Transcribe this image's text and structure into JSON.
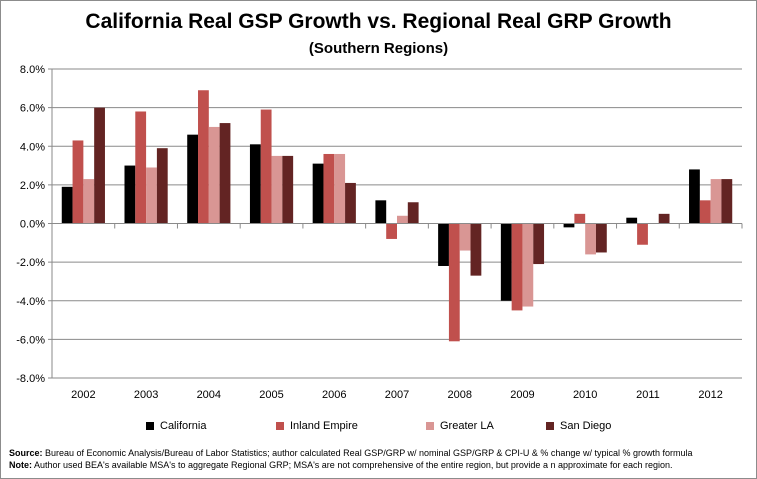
{
  "chart_data": {
    "type": "bar",
    "title": "California Real GSP Growth vs. Regional Real GRP Growth",
    "subtitle": "(Southern Regions)",
    "categories": [
      "2002",
      "2003",
      "2004",
      "2005",
      "2006",
      "2007",
      "2008",
      "2009",
      "2010",
      "2011",
      "2012"
    ],
    "series": [
      {
        "name": "California",
        "color": "#000000",
        "values": [
          1.9,
          3.0,
          4.6,
          4.1,
          3.1,
          1.2,
          -2.2,
          -4.0,
          -0.2,
          0.3,
          2.8
        ]
      },
      {
        "name": "Inland Empire",
        "color": "#c0504d",
        "values": [
          4.3,
          5.8,
          6.9,
          5.9,
          3.6,
          -0.8,
          -6.1,
          -4.5,
          0.5,
          -1.1,
          1.2
        ]
      },
      {
        "name": "Greater LA",
        "color": "#d99694",
        "values": [
          2.3,
          2.9,
          5.0,
          3.5,
          3.6,
          0.4,
          -1.4,
          -4.3,
          -1.6,
          0.0,
          2.3
        ]
      },
      {
        "name": "San Diego",
        "color": "#632423",
        "values": [
          6.0,
          3.9,
          5.2,
          3.5,
          2.1,
          1.1,
          -2.7,
          -2.1,
          -1.5,
          0.5,
          2.3
        ]
      }
    ],
    "yticks": [
      "8.0%",
      "6.0%",
      "4.0%",
      "2.0%",
      "0.0%",
      "-2.0%",
      "-4.0%",
      "-6.0%",
      "-8.0%"
    ],
    "ylim": [
      -8,
      8
    ],
    "grid": true,
    "legend": "bottom"
  },
  "notes": {
    "source_label": "Source:",
    "source_text": " Bureau of Economic Analysis/Bureau of Labor Statistics; author calculated Real GSP/GRP w/ nominal GSP/GRP & CPI-U & % change w/ typical % growth formula",
    "note_label": "Note:",
    "note_text": " Author used BEA's available MSA's to aggregate Regional GRP; MSA's are not comprehensive of the entire region, but provide a n approximate for each region."
  }
}
